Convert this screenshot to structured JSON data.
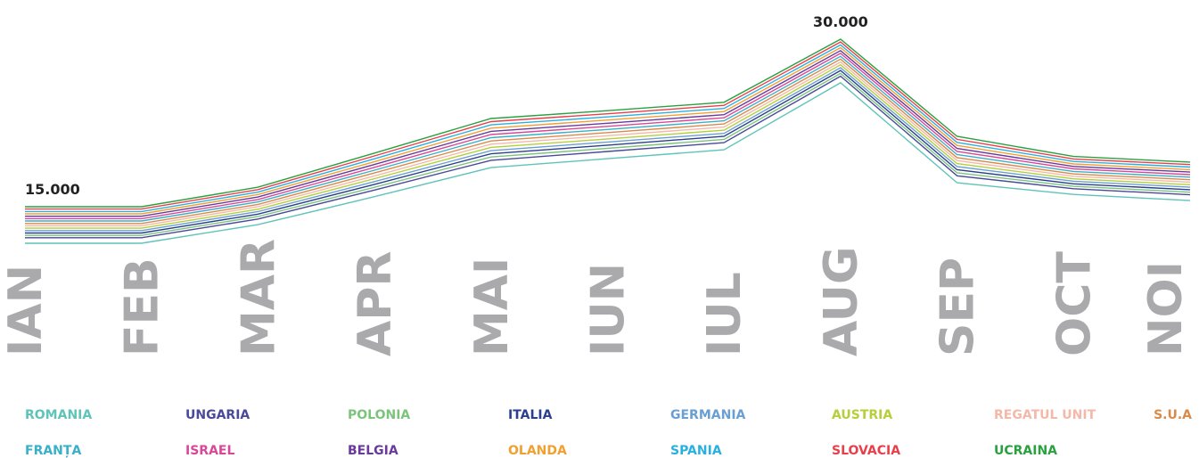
{
  "chart_data": {
    "type": "line",
    "categories": [
      "IAN",
      "FEB",
      "MAR",
      "APR",
      "MAI",
      "IUN",
      "IUL",
      "AUG",
      "SEP",
      "OCT",
      "NOI"
    ],
    "ylim": [
      0,
      33000
    ],
    "annotations": [
      {
        "text": "15.000",
        "value": 15000,
        "category": "IAN"
      },
      {
        "text": "30.000",
        "value": 30000,
        "category": "AUG"
      }
    ],
    "series": [
      {
        "name": "ROMANIA",
        "color": "#5fc4b8",
        "values": [
          11730,
          11730,
          13400,
          15900,
          18500,
          19300,
          20100,
          26100,
          17150,
          16100,
          15550
        ]
      },
      {
        "name": "UNGARIA",
        "color": "#4a4a9a",
        "values": [
          12220,
          12220,
          13900,
          16490,
          19160,
          19950,
          20740,
          26690,
          17770,
          16610,
          16070
        ]
      },
      {
        "name": "POLONIA",
        "color": "#7cc47c",
        "values": [
          12430,
          12430,
          14120,
          16740,
          19450,
          20230,
          21020,
          26940,
          18040,
          16830,
          16300
        ]
      },
      {
        "name": "ITALIA",
        "color": "#2b3f8f",
        "values": [
          12650,
          12650,
          14340,
          17000,
          19740,
          20510,
          21300,
          27200,
          18310,
          17050,
          16520
        ]
      },
      {
        "name": "GERMANIA",
        "color": "#6a9fd4",
        "values": [
          12860,
          12860,
          14560,
          17250,
          20020,
          20790,
          21570,
          27450,
          18590,
          17280,
          16750
        ]
      },
      {
        "name": "AUSTRIA",
        "color": "#b5cf3a",
        "values": [
          13080,
          13080,
          14780,
          17510,
          20310,
          21070,
          21850,
          27710,
          18860,
          17500,
          16970
        ]
      },
      {
        "name": "REGATUL UNIT",
        "color": "#f4b8a8",
        "values": [
          13290,
          13290,
          15000,
          17760,
          20600,
          21360,
          22130,
          27960,
          19130,
          17720,
          17200
        ]
      },
      {
        "name": "S.U.A",
        "color": "#d88a4a",
        "values": [
          13500,
          13500,
          15210,
          18020,
          20890,
          21640,
          22410,
          28220,
          19400,
          17940,
          17420
        ]
      },
      {
        "name": "FRANȚA",
        "color": "#3ab0c8",
        "values": [
          13720,
          13720,
          15430,
          18270,
          21180,
          21920,
          22690,
          28470,
          19670,
          18160,
          17650
        ]
      },
      {
        "name": "ISRAEL",
        "color": "#d8489a",
        "values": [
          13930,
          13930,
          15650,
          18530,
          21460,
          22200,
          22960,
          28730,
          19950,
          18390,
          17870
        ]
      },
      {
        "name": "BELGIA",
        "color": "#6a3a9a",
        "values": [
          14150,
          14150,
          15870,
          18780,
          21750,
          22480,
          23240,
          28980,
          20220,
          18610,
          18100
        ]
      },
      {
        "name": "OLANDA",
        "color": "#f0a030",
        "values": [
          14360,
          14360,
          16090,
          19040,
          22040,
          22760,
          23520,
          29240,
          20490,
          18830,
          18320
        ]
      },
      {
        "name": "SPANIA",
        "color": "#2ab0e0",
        "values": [
          14570,
          14570,
          16310,
          19290,
          22330,
          23040,
          23800,
          29490,
          20760,
          19050,
          18550
        ]
      },
      {
        "name": "SLOVACIA",
        "color": "#e8404a",
        "values": [
          14790,
          14790,
          16530,
          19550,
          22620,
          23320,
          24080,
          29750,
          21030,
          19280,
          18770
        ]
      },
      {
        "name": "UCRAINA",
        "color": "#2aa040",
        "values": [
          15000,
          15000,
          16750,
          19800,
          22900,
          23600,
          24350,
          30000,
          21300,
          19500,
          19000
        ]
      }
    ]
  }
}
